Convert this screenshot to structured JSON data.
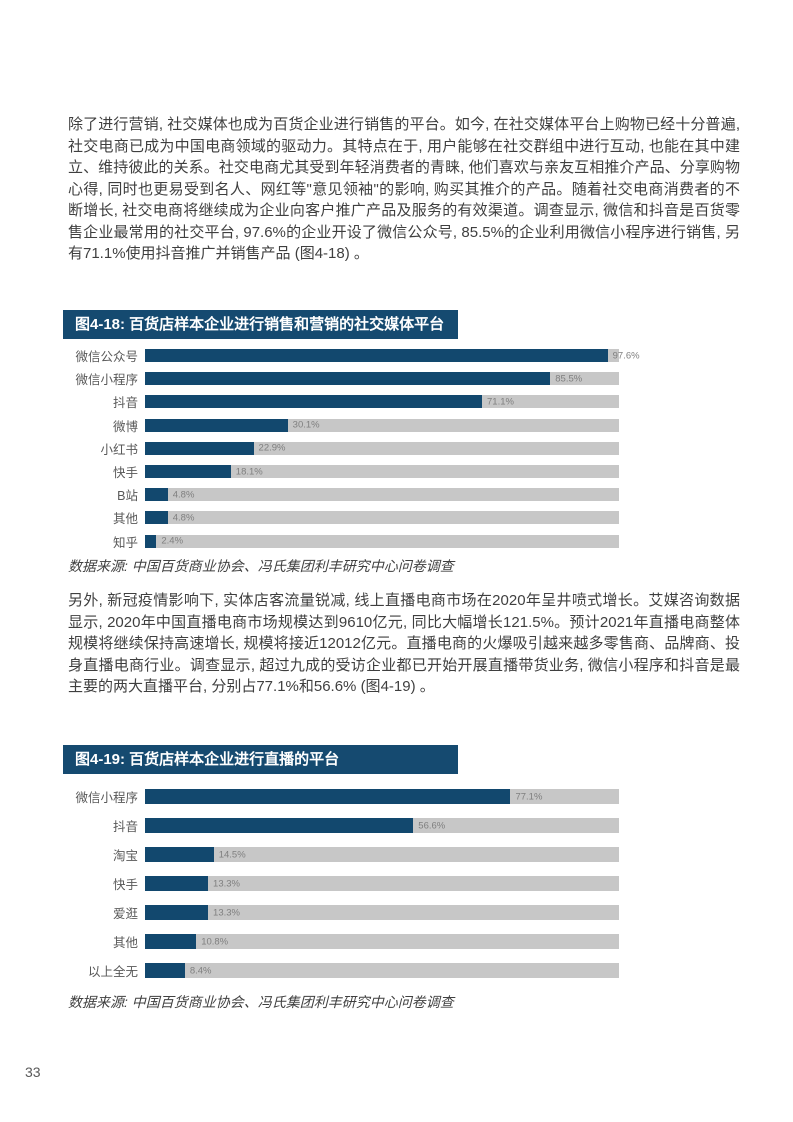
{
  "page": {
    "number": "33"
  },
  "paragraphs": [
    {
      "text": "除了进行营销, 社交媒体也成为百货企业进行销售的平台。如今, 在社交媒体平台上购物已经十分普遍, 社交电商已成为中国电商领域的驱动力。其特点在于, 用户能够在社交群组中进行互动, 也能在其中建立、维持彼此的关系。社交电商尤其受到年轻消费者的青睐, 他们喜欢与亲友互相推介产品、分享购物心得, 同时也更易受到名人、网红等\"意见领袖\"的影响, 购买其推介的产品。随着社交电商消费者的不断增长, 社交电商将继续成为企业向客户推广产品及服务的有效渠道。调查显示, 微信和抖音是百货零售企业最常用的社交平台, 97.6%的企业开设了微信公众号, 85.5%的企业利用微信小程序进行销售, 另有71.1%使用抖音推广并销售产品 (图4-18) 。"
    },
    {
      "text": "另外, 新冠疫情影响下, 实体店客流量锐减, 线上直播电商市场在2020年呈井喷式增长。艾媒咨询数据显示, 2020年中国直播电商市场规模达到9610亿元, 同比大幅增长121.5%。预计2021年直播电商整体规模将继续保持高速增长, 规模将接近12012亿元。直播电商的火爆吸引越来越多零售商、品牌商、投身直播电商行业。调查显示, 超过九成的受访企业都已开始开展直播带货业务, 微信小程序和抖音是最主要的两大直播平台, 分别占77.1%和56.6% (图4-19) 。"
    }
  ],
  "figures": [
    {
      "title": "图4-18: 百货店样本企业进行销售和营销的社交媒体平台",
      "source": "数据来源: 中国百货商业协会、冯氏集团利丰研究中心问卷调查"
    },
    {
      "title": "图4-19: 百货店样本企业进行直播的平台",
      "source": "数据来源: 中国百货商业协会、冯氏集团利丰研究中心问卷调查"
    }
  ],
  "chart_data": [
    {
      "type": "bar",
      "orientation": "horizontal",
      "title": "图4-18: 百货店样本企业进行销售和营销的社交媒体平台",
      "categories": [
        "微信公众号",
        "微信小程序",
        "抖音",
        "微博",
        "小红书",
        "快手",
        "B站",
        "其他",
        "知乎"
      ],
      "values": [
        97.6,
        85.5,
        71.1,
        30.1,
        22.9,
        18.1,
        4.8,
        4.8,
        2.4
      ],
      "value_labels": [
        "97.6%",
        "85.5%",
        "71.1%",
        "30.1%",
        "22.9%",
        "18.1%",
        "4.8%",
        "4.8%",
        "2.4%"
      ],
      "xlim": [
        0,
        100
      ],
      "grid": false,
      "legend": false,
      "bar_color": "#12486e",
      "track_color": "#c7c7c7"
    },
    {
      "type": "bar",
      "orientation": "horizontal",
      "title": "图4-19: 百货店样本企业进行直播的平台",
      "categories": [
        "微信小程序",
        "抖音",
        "淘宝",
        "快手",
        "爱逛",
        "其他",
        "以上全无"
      ],
      "values": [
        77.1,
        56.6,
        14.5,
        13.3,
        13.3,
        10.8,
        8.4
      ],
      "value_labels": [
        "77.1%",
        "56.6%",
        "14.5%",
        "13.3%",
        "13.3%",
        "10.8%",
        "8.4%"
      ],
      "xlim": [
        0,
        100
      ],
      "grid": false,
      "legend": false,
      "bar_color": "#12486e",
      "track_color": "#c7c7c7"
    }
  ]
}
